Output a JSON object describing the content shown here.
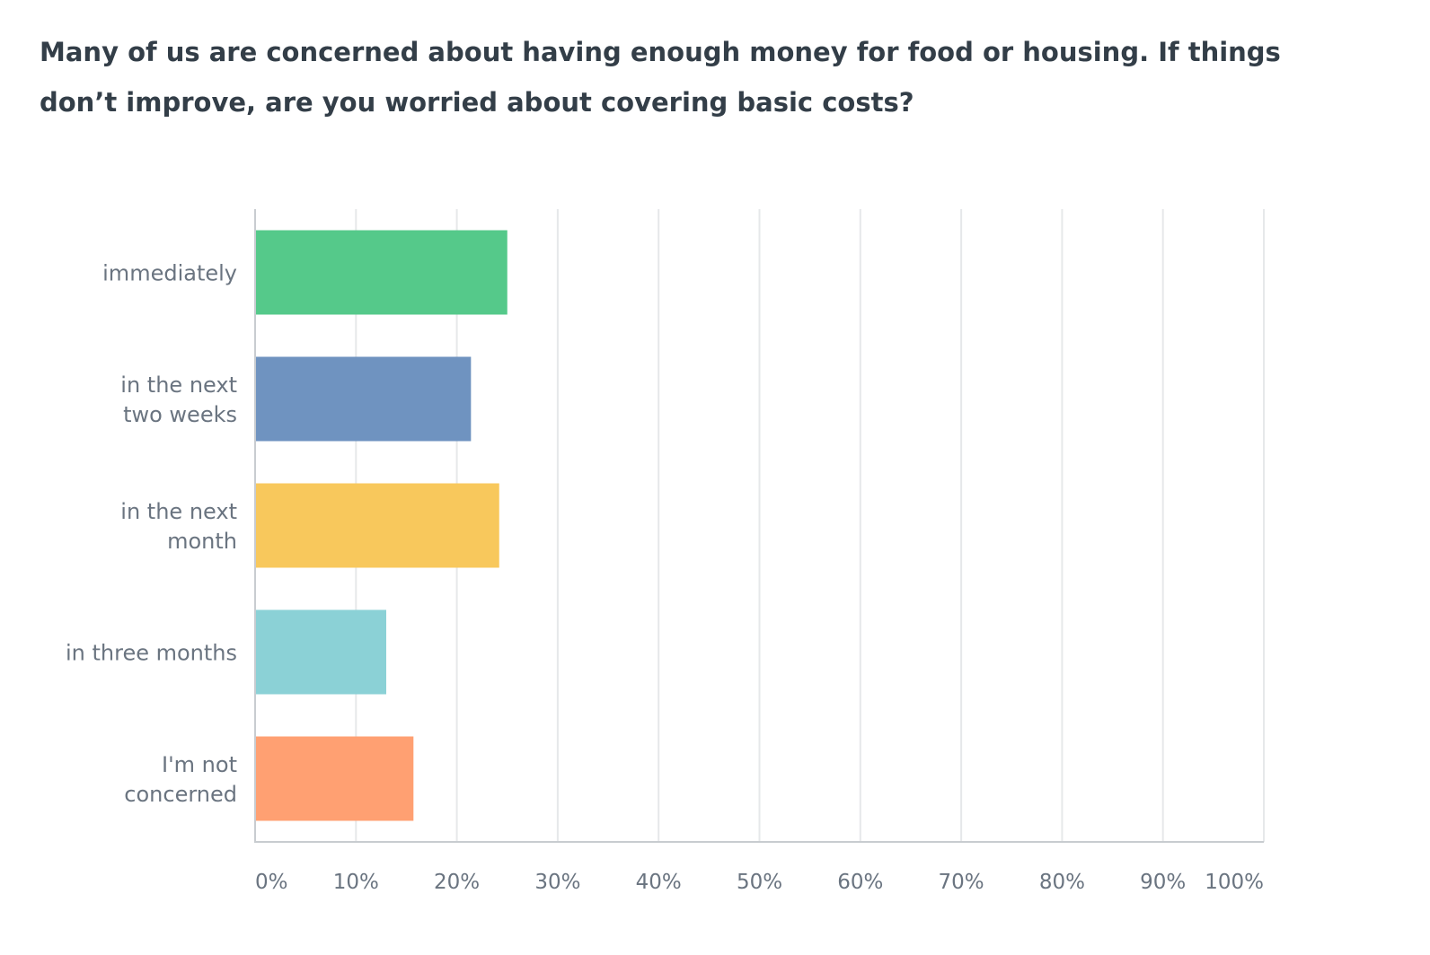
{
  "question": {
    "title": "Many of us are concerned about having enough money for food or housing. If things don’t improve, are you worried about covering basic costs?"
  },
  "chart_data": {
    "type": "bar",
    "orientation": "horizontal",
    "title": "",
    "xlabel": "",
    "ylabel": "",
    "xlim": [
      0,
      100
    ],
    "grid": true,
    "legend": "none",
    "categories": [
      [
        "immediately"
      ],
      [
        "in the next",
        "two weeks"
      ],
      [
        "in the next",
        "month"
      ],
      [
        "in three months"
      ],
      [
        "I'm not",
        "concerned"
      ]
    ],
    "values": [
      25,
      21.4,
      24.2,
      13,
      15.7
    ],
    "colors": [
      "#55c98a",
      "#6f93c0",
      "#f8c85c",
      "#8bd1d6",
      "#ffa072"
    ],
    "ticks": [
      "0%",
      "10%",
      "20%",
      "30%",
      "40%",
      "50%",
      "60%",
      "70%",
      "80%",
      "90%",
      "100%"
    ]
  }
}
